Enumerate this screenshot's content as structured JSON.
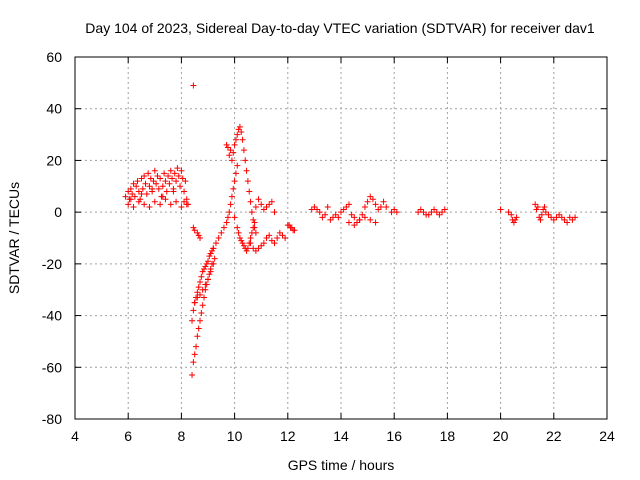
{
  "chart_data": {
    "type": "scatter",
    "title": "Day 104 of 2023, Sidereal Day-to-day VTEC variation (SDTVAR) for receiver dav1",
    "xlabel": "GPS time / hours",
    "ylabel": "SDTVAR / TECUs",
    "xlim": [
      4,
      24
    ],
    "ylim": [
      -80,
      60
    ],
    "xticks": [
      4,
      6,
      8,
      10,
      12,
      14,
      16,
      18,
      20,
      22,
      24
    ],
    "yticks": [
      -80,
      -60,
      -40,
      -20,
      0,
      20,
      40,
      60
    ],
    "grid": true,
    "legend": "none",
    "marker": "+",
    "colors": {
      "points": "#ff0000",
      "grid": "#a0a0a0",
      "axes": "#000000"
    },
    "series": [
      {
        "name": "dav1",
        "x": [
          5.9,
          6.0,
          6.05,
          6.1,
          6.15,
          6.2,
          6.25,
          6.3,
          6.35,
          6.4,
          6.45,
          6.5,
          6.55,
          6.6,
          6.65,
          6.7,
          6.75,
          6.8,
          6.85,
          6.9,
          6.95,
          7.0,
          7.05,
          7.1,
          7.15,
          7.2,
          7.25,
          7.3,
          7.35,
          7.4,
          7.45,
          7.5,
          7.55,
          7.6,
          7.65,
          7.7,
          7.75,
          7.8,
          7.85,
          7.9,
          7.95,
          8.0,
          8.05,
          8.1,
          8.15,
          8.2,
          8.25,
          6.0,
          6.2,
          6.4,
          6.6,
          6.8,
          7.0,
          7.2,
          7.4,
          7.6,
          7.8,
          8.0,
          8.2,
          6.1,
          6.5,
          6.9,
          7.3,
          7.7,
          8.1,
          8.45,
          8.5,
          8.6,
          8.65,
          8.7,
          8.4,
          8.45,
          8.5,
          8.55,
          8.6,
          8.65,
          8.7,
          8.75,
          8.8,
          8.85,
          8.9,
          8.95,
          9.0,
          9.05,
          9.1,
          9.15,
          9.2,
          8.4,
          8.45,
          8.5,
          8.55,
          8.6,
          8.65,
          8.7,
          8.75,
          8.8,
          8.85,
          8.9,
          8.95,
          9.0,
          9.05,
          9.1,
          9.15,
          8.5,
          8.6,
          8.7,
          8.8,
          8.9,
          9.0,
          9.1,
          9.2,
          9.25,
          8.45,
          9.1,
          9.2,
          9.3,
          9.4,
          9.5,
          9.6,
          9.7,
          9.75,
          9.8,
          9.85,
          9.9,
          9.95,
          10.0,
          10.05,
          10.1,
          9.7,
          9.75,
          9.8,
          9.85,
          9.9,
          9.95,
          10.0,
          10.05,
          10.1,
          10.15,
          10.2,
          10.25,
          10.3,
          10.35,
          10.4,
          10.45,
          10.5,
          10.55,
          10.6,
          10.65,
          10.7,
          10.75,
          10.8,
          10.0,
          10.1,
          10.15,
          10.2,
          10.25,
          10.3,
          10.35,
          10.4,
          10.45,
          10.5,
          10.55,
          10.6,
          10.65,
          10.7,
          10.75,
          10.8,
          10.9,
          11.0,
          11.1,
          11.2,
          11.3,
          11.4,
          11.5,
          10.6,
          10.7,
          10.8,
          10.9,
          11.0,
          11.1,
          11.2,
          11.3,
          11.4,
          11.5,
          11.6,
          11.7,
          11.8,
          11.9,
          12.0,
          12.05,
          12.1,
          12.15,
          12.2,
          12.25,
          12.9,
          13.0,
          13.1,
          13.2,
          13.3,
          13.4,
          13.5,
          13.6,
          13.7,
          13.8,
          13.9,
          14.0,
          14.1,
          14.2,
          14.3,
          14.4,
          14.5,
          14.6,
          14.7,
          14.8,
          14.9,
          15.0,
          15.1,
          15.2,
          15.3,
          15.4,
          15.5,
          15.6,
          15.7,
          14.3,
          14.5,
          14.7,
          14.9,
          15.1,
          15.3,
          15.9,
          16.0,
          16.1,
          16.9,
          17.0,
          17.1,
          17.2,
          17.3,
          17.4,
          17.5,
          17.6,
          17.7,
          17.8,
          17.9,
          20.0,
          20.3,
          20.4,
          20.45,
          20.5,
          20.55,
          20.6,
          21.3,
          21.35,
          21.4,
          21.45,
          21.5,
          21.55,
          21.6,
          21.65,
          21.7,
          21.8,
          21.9,
          22.0,
          22.1,
          22.2,
          22.3,
          22.4,
          22.5,
          22.6,
          22.7,
          22.8
        ],
        "y": [
          6,
          8,
          5,
          9,
          7,
          11,
          6,
          10,
          12,
          8,
          5,
          13,
          9,
          14,
          11,
          7,
          15,
          10,
          13,
          8,
          12,
          16,
          11,
          14,
          9,
          13,
          6,
          10,
          15,
          12,
          8,
          14,
          11,
          16,
          13,
          9,
          15,
          12,
          17,
          14,
          10,
          16,
          13,
          8,
          12,
          5,
          3,
          3,
          2,
          4,
          3,
          2,
          4,
          3,
          5,
          3,
          4,
          2,
          3,
          5,
          7,
          9,
          6,
          8,
          4,
          -6,
          -7,
          -8,
          -9,
          -10,
          -42,
          -38,
          -35,
          -33,
          -31,
          -29,
          -27,
          -25,
          -23,
          -22,
          -21,
          -20,
          -19,
          -17,
          -16,
          -15,
          -14,
          -63,
          -58,
          -55,
          -52,
          -48,
          -45,
          -42,
          -39,
          -36,
          -33,
          -30,
          -28,
          -26,
          -24,
          -22,
          -20,
          -35,
          -33,
          -32,
          -30,
          -28,
          -26,
          -23,
          -20,
          -18,
          49,
          -16,
          -14,
          -12,
          -10,
          -8,
          -6,
          -4,
          -2,
          0,
          3,
          6,
          9,
          12,
          15,
          18,
          26,
          25,
          22,
          24,
          20,
          23,
          26,
          28,
          30,
          32,
          33,
          31,
          28,
          24,
          20,
          16,
          12,
          8,
          4,
          0,
          -3,
          -6,
          -8,
          -2,
          -6,
          -8,
          -10,
          -11,
          -12,
          -13,
          -14,
          -15,
          -14,
          -12,
          -10,
          -8,
          -6,
          -4,
          2,
          5,
          3,
          1,
          2,
          3,
          4,
          0,
          -12,
          -14,
          -15,
          -14,
          -13,
          -12,
          -10,
          -9,
          -11,
          -12,
          -10,
          -8,
          -9,
          -10,
          -5,
          -5,
          -6,
          -6,
          -7,
          -7,
          1,
          2,
          1,
          0,
          -2,
          -1,
          2,
          -3,
          -2,
          -1,
          -2,
          0,
          1,
          2,
          3,
          -1,
          -2,
          -4,
          -3,
          -1,
          2,
          4,
          6,
          5,
          3,
          1,
          2,
          4,
          2,
          -4,
          -5,
          -3,
          -2,
          -3,
          -4,
          0,
          1,
          0,
          0,
          1,
          0,
          -1,
          -1,
          0,
          1,
          0,
          -1,
          0,
          1,
          1,
          0,
          -1,
          -3,
          -4,
          -3,
          -2,
          3,
          1,
          2,
          -2,
          -3,
          -1,
          1,
          2,
          0,
          -1,
          -2,
          -3,
          -2,
          -1,
          -2,
          -3,
          -4,
          -2,
          -3,
          -2
        ]
      }
    ]
  }
}
